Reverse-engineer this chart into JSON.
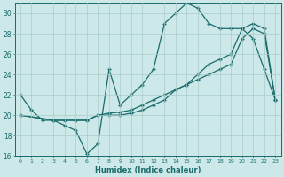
{
  "xlabel": "Humidex (Indice chaleur)",
  "bg_color": "#cce8e8",
  "line_color": "#1a6b6b",
  "grid_color": "#aacccc",
  "xlim": [
    -0.5,
    23.5
  ],
  "ylim": [
    16,
    31
  ],
  "xticks": [
    0,
    1,
    2,
    3,
    4,
    5,
    6,
    7,
    8,
    9,
    10,
    11,
    12,
    13,
    14,
    15,
    16,
    17,
    18,
    19,
    20,
    21,
    22,
    23
  ],
  "yticks": [
    16,
    18,
    20,
    22,
    24,
    26,
    28,
    30
  ],
  "line1_x": [
    0,
    1,
    2,
    3,
    4,
    5,
    6,
    7,
    8,
    9,
    10,
    11,
    12,
    13,
    14,
    15,
    16,
    17,
    18,
    19,
    20,
    21,
    22,
    23
  ],
  "line1_y": [
    22,
    20.5,
    19.5,
    19.5,
    19,
    18.5,
    16.2,
    17.2,
    24.5,
    21,
    22,
    23,
    24.5,
    29,
    30,
    31,
    30.5,
    29,
    28.5,
    28.5,
    28.5,
    27.5,
    24.5,
    21.5
  ],
  "line2_x": [
    0,
    3,
    4,
    5,
    6,
    7,
    8,
    9,
    10,
    11,
    12,
    13,
    14,
    15,
    16,
    17,
    18,
    19,
    20,
    21,
    22,
    23
  ],
  "line2_y": [
    20,
    19.5,
    19.5,
    19.5,
    19.5,
    20,
    20,
    20,
    20.2,
    20.5,
    21,
    21.5,
    22.5,
    23,
    24,
    25,
    25.5,
    26,
    28.5,
    29,
    28.5,
    21.5
  ],
  "line3_x": [
    0,
    3,
    4,
    5,
    6,
    7,
    8,
    9,
    10,
    11,
    12,
    13,
    14,
    15,
    16,
    17,
    18,
    19,
    20,
    21,
    22,
    23
  ],
  "line3_y": [
    20,
    19.5,
    19.5,
    19.5,
    19.5,
    20,
    20.2,
    20.3,
    20.5,
    21,
    21.5,
    22,
    22.5,
    23,
    23.5,
    24,
    24.5,
    25,
    27.5,
    28.5,
    28,
    21.5
  ]
}
